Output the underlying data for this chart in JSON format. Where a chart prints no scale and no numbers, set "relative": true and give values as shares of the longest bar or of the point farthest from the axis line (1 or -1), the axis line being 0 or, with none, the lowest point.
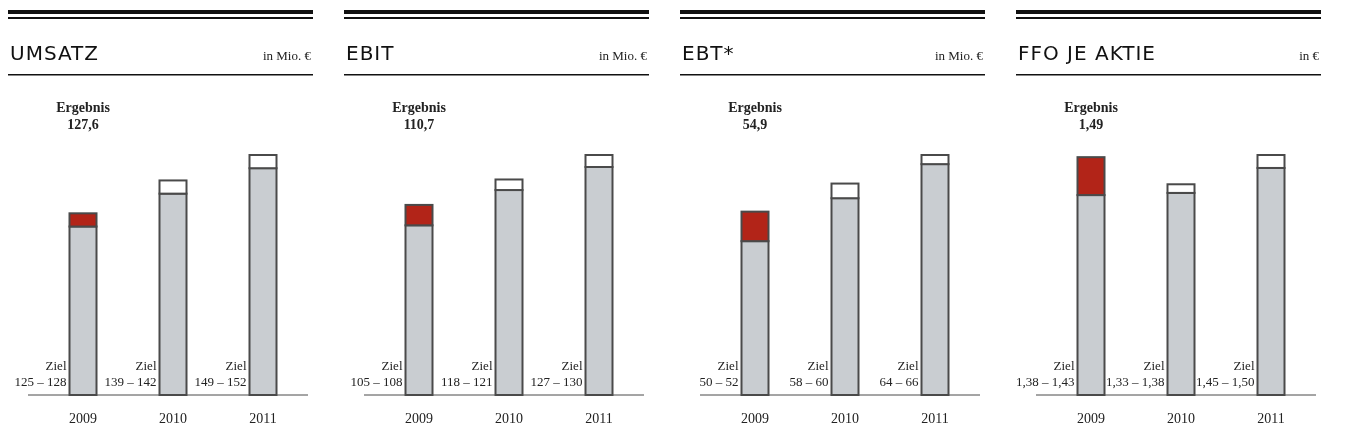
{
  "chart_data": [
    {
      "type": "bar",
      "title": "UMSATZ",
      "subtitle": "in Mio. €",
      "categories": [
        "2009",
        "2010",
        "2011"
      ],
      "relative": true,
      "stacked": true,
      "series": [
        {
          "color": "#c9cdd1",
          "values": [
            0.702,
            0.839,
            0.945
          ]
        },
        {
          "color": "#ffffff",
          "values": [
            null,
            0.055,
            0.055
          ]
        },
        {
          "color": "#b22418",
          "values": [
            0.055,
            null,
            null
          ]
        }
      ],
      "annotations": [
        "Ergebnis\n127,6",
        "Ziel\n125 – 128",
        "Ziel\n139 – 142",
        "Ziel\n149 – 152"
      ]
    },
    {
      "type": "bar",
      "title": "EBIT",
      "subtitle": "in Mio. €",
      "categories": [
        "2009",
        "2010",
        "2011"
      ],
      "relative": true,
      "stacked": true,
      "series": [
        {
          "color": "#c9cdd1",
          "values": [
            0.707,
            0.854,
            0.95
          ]
        },
        {
          "color": "#ffffff",
          "values": [
            null,
            0.044,
            0.05
          ]
        },
        {
          "color": "#b22418",
          "values": [
            0.085,
            null,
            null
          ]
        }
      ],
      "annotations": [
        "Ergebnis\n110,7",
        "Ziel\n105 – 108",
        "Ziel\n118 – 121",
        "Ziel\n127 – 130"
      ]
    },
    {
      "type": "bar",
      "title": "EBT*",
      "subtitle": "in Mio. €",
      "categories": [
        "2009",
        "2010",
        "2011"
      ],
      "relative": true,
      "stacked": true,
      "series": [
        {
          "color": "#c9cdd1",
          "values": [
            0.641,
            0.82,
            0.962
          ]
        },
        {
          "color": "#ffffff",
          "values": [
            null,
            0.061,
            0.038
          ]
        },
        {
          "color": "#b22418",
          "values": [
            0.123,
            null,
            null
          ]
        }
      ],
      "annotations": [
        "Ergebnis\n54,9",
        "Ziel\n50 – 52",
        "Ziel\n58 – 60",
        "Ziel\n64 – 66"
      ]
    },
    {
      "type": "bar",
      "title": "FFO JE AKTIE",
      "subtitle": "in €",
      "categories": [
        "2009",
        "2010",
        "2011"
      ],
      "relative": true,
      "stacked": true,
      "series": [
        {
          "color": "#c9cdd1",
          "values": [
            0.833,
            0.842,
            0.946
          ]
        },
        {
          "color": "#ffffff",
          "values": [
            null,
            0.036,
            0.054
          ]
        },
        {
          "color": "#b22418",
          "values": [
            0.158,
            null,
            null
          ]
        }
      ],
      "annotations": [
        "Ergebnis\n1,49",
        "Ziel\n1,38 – 1,43",
        "Ziel\n1,33 – 1,38",
        "Ziel\n1,45 – 1,50"
      ]
    }
  ]
}
